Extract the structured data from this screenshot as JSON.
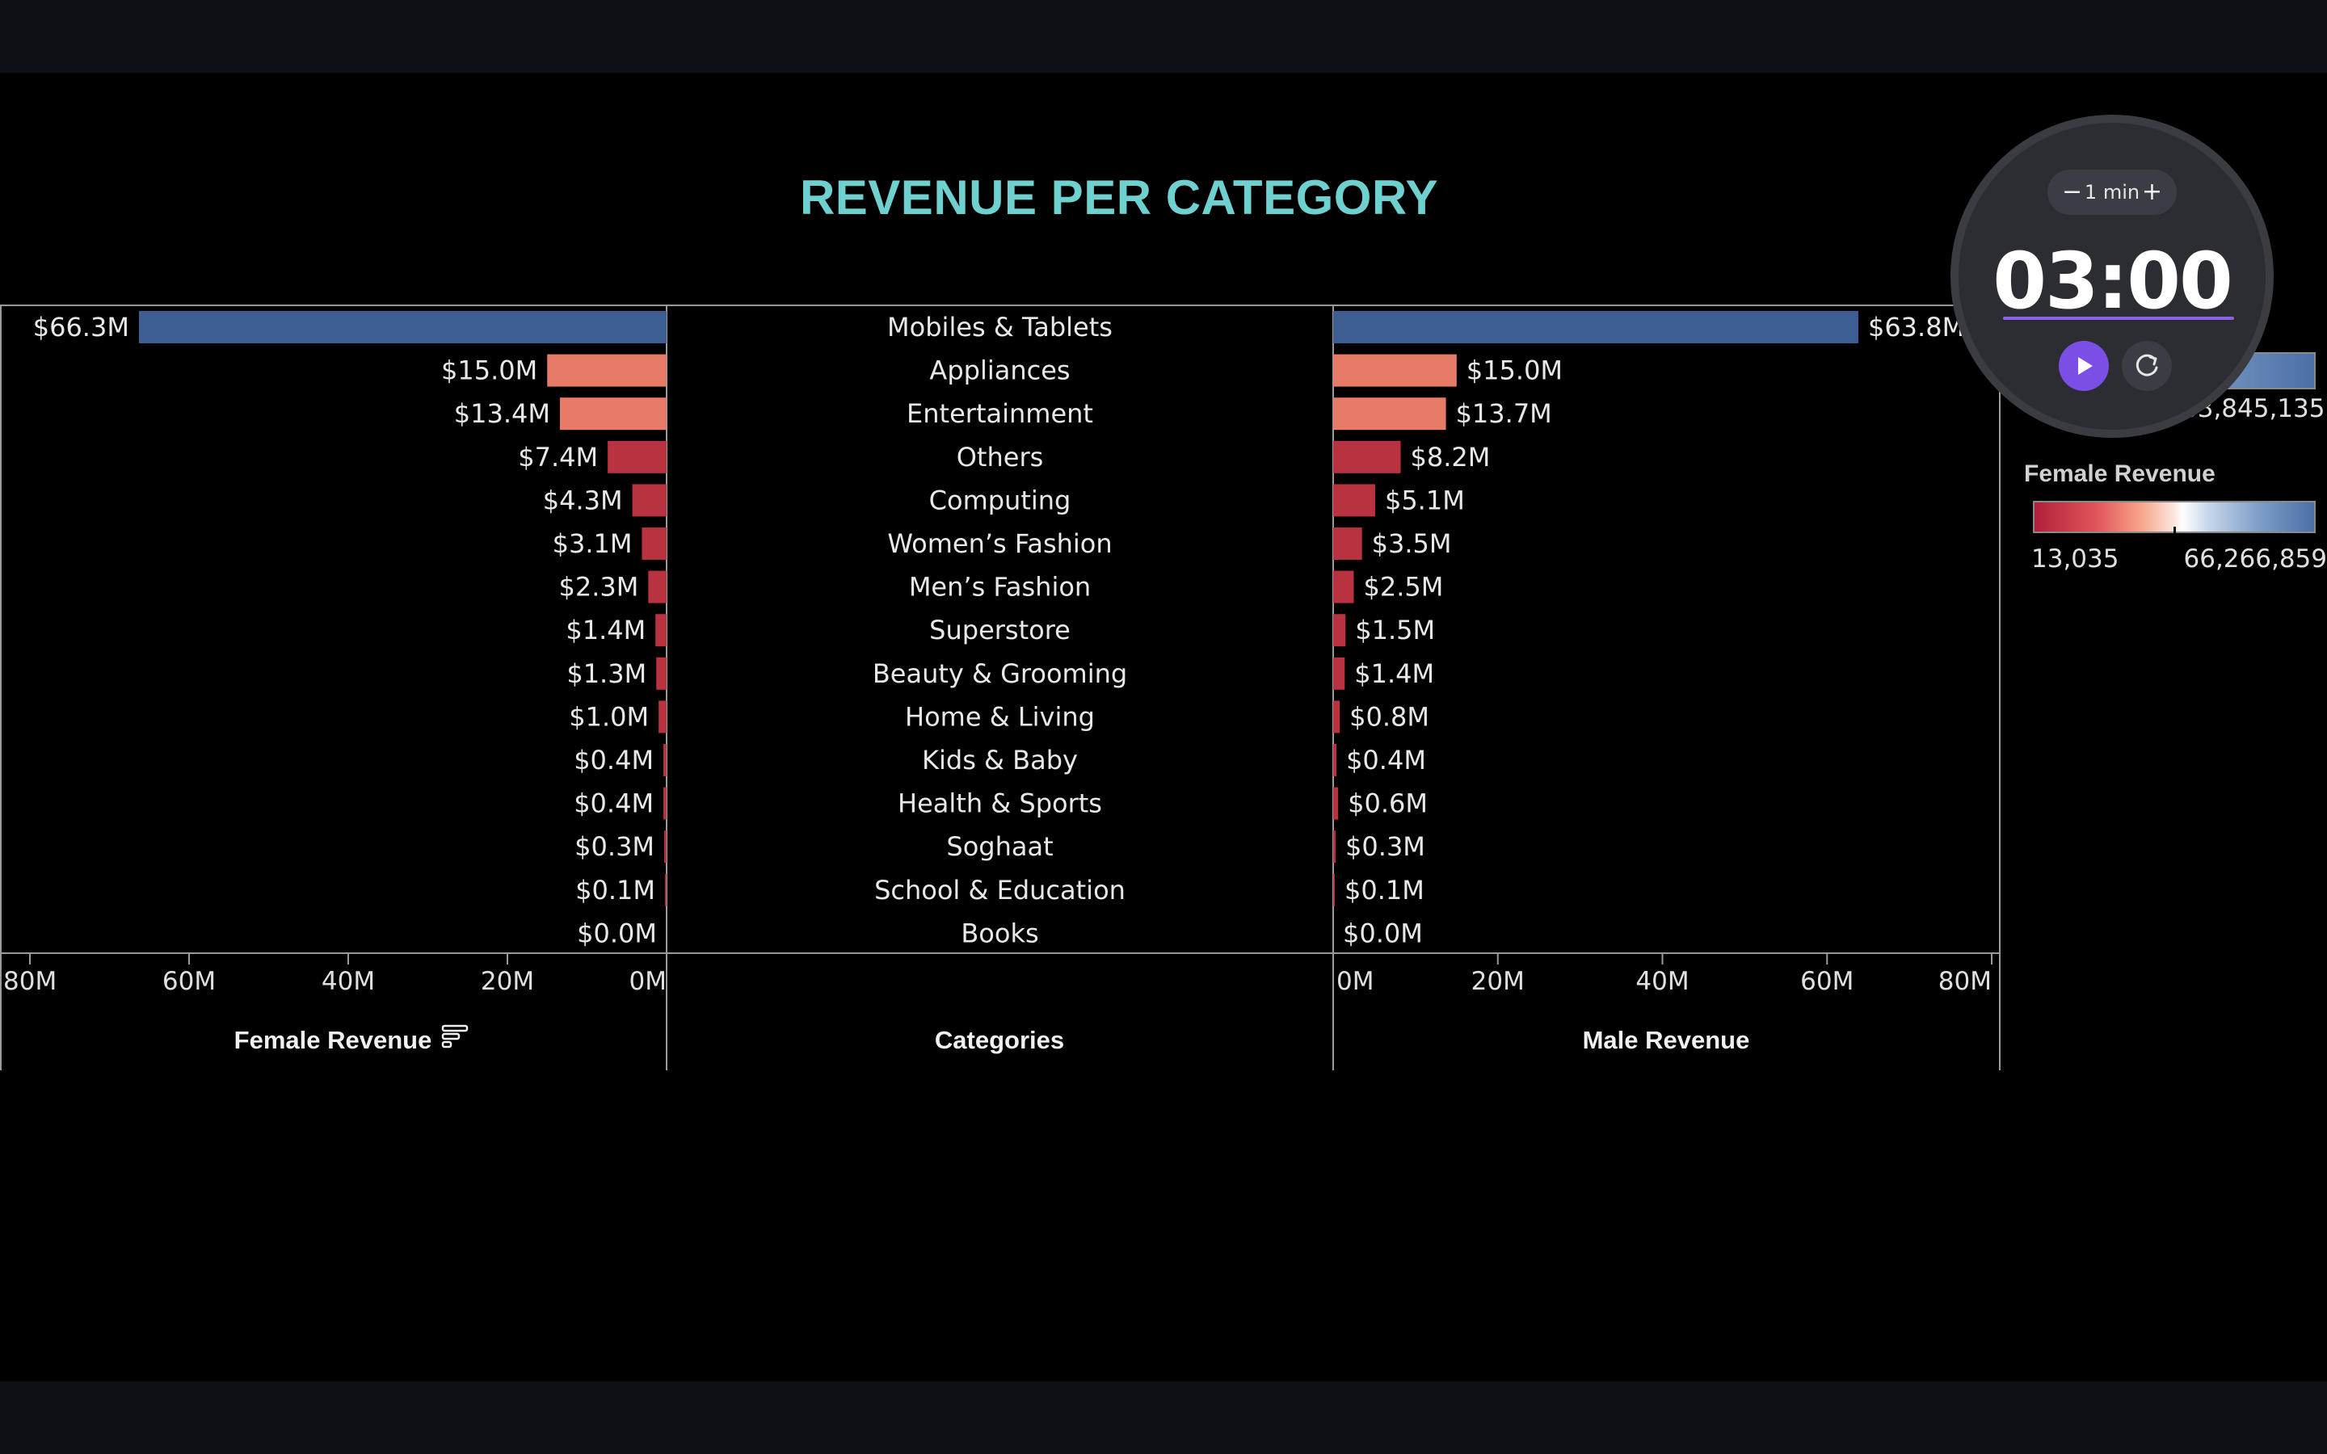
{
  "title": "REVENUE PER CATEGORY",
  "chart_data": {
    "type": "bar",
    "categories": [
      "Mobiles & Tablets",
      "Appliances",
      "Entertainment",
      "Others",
      "Computing",
      "Women’s Fashion",
      "Men’s Fashion",
      "Superstore",
      "Beauty & Grooming",
      "Home & Living",
      "Kids & Baby",
      "Health & Sports",
      "Soghaat",
      "School & Education",
      "Books"
    ],
    "series": [
      {
        "name": "Female Revenue",
        "values": [
          66.3,
          15.0,
          13.4,
          7.4,
          4.3,
          3.1,
          2.3,
          1.4,
          1.3,
          1.0,
          0.4,
          0.4,
          0.3,
          0.1,
          0.0
        ],
        "labels": [
          "$66.3M",
          "$15.0M",
          "$13.4M",
          "$7.4M",
          "$4.3M",
          "$3.1M",
          "$2.3M",
          "$1.4M",
          "$1.3M",
          "$1.0M",
          "$0.4M",
          "$0.4M",
          "$0.3M",
          "$0.1M",
          "$0.0M"
        ]
      },
      {
        "name": "Male Revenue",
        "values": [
          63.8,
          15.0,
          13.7,
          8.2,
          5.1,
          3.5,
          2.5,
          1.5,
          1.4,
          0.8,
          0.4,
          0.6,
          0.3,
          0.1,
          0.0
        ],
        "labels": [
          "$63.8M",
          "$15.0M",
          "$13.7M",
          "$8.2M",
          "$5.1M",
          "$3.5M",
          "$2.5M",
          "$1.5M",
          "$1.4M",
          "$0.8M",
          "$0.4M",
          "$0.6M",
          "$0.3M",
          "$0.1M",
          "$0.0M"
        ]
      }
    ],
    "female_ticks": [
      "80M",
      "60M",
      "40M",
      "20M",
      "0M"
    ],
    "male_ticks": [
      "0M",
      "20M",
      "40M",
      "60M",
      "80M"
    ],
    "female_axis_label": "Female Revenue",
    "categories_axis_label": "Categories",
    "male_axis_label": "Male Revenue",
    "xlim": [
      0,
      80
    ],
    "colors": {
      "high": "#3d5e93",
      "mid": "#e87a68",
      "low": "#b8323f"
    }
  },
  "legend": {
    "title": "Female Revenue",
    "min": "13,035",
    "max": "66,266,859",
    "top_max": "63,845,135"
  },
  "timer": {
    "step_label": "1 min",
    "minus": "−",
    "plus": "+",
    "time": "03:00"
  }
}
